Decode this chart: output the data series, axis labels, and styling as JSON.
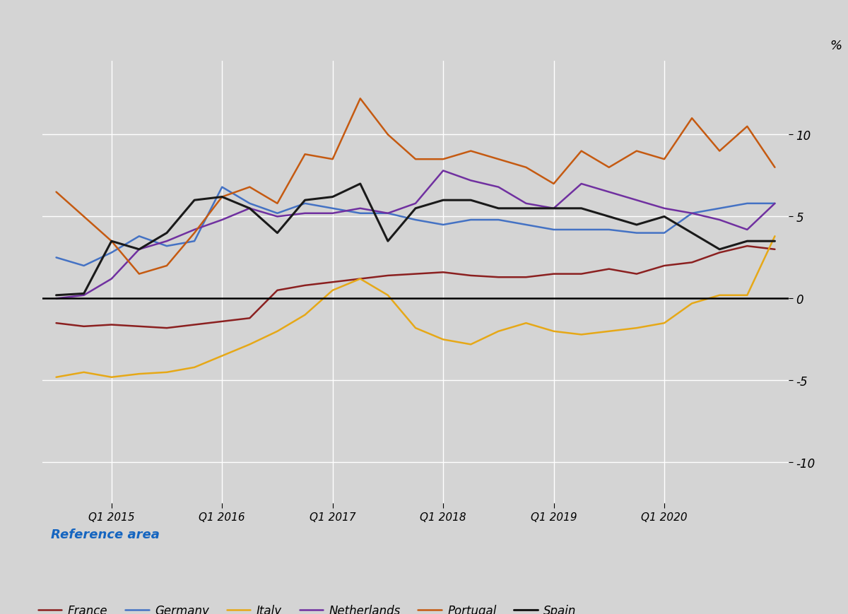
{
  "background_color": "#d4d4d4",
  "zero_line_color": "#000000",
  "grid_color": "#ffffff",
  "ylabel": "%",
  "x_tick_labels": [
    "Q1 2015",
    "Q1 2016",
    "Q1 2017",
    "Q1 2018",
    "Q1 2019",
    "Q1 2020"
  ],
  "yticks": [
    -10,
    -5,
    0,
    5,
    10
  ],
  "ylim": [
    -12.5,
    14.5
  ],
  "legend_title": "Reference area",
  "legend_title_color": "#1565c0",
  "series": {
    "France": {
      "color": "#8b2020",
      "linewidth": 1.8,
      "data": [
        -1.5,
        -1.7,
        -1.6,
        -1.7,
        -1.8,
        -1.6,
        -1.4,
        -1.2,
        0.5,
        0.8,
        1.0,
        1.2,
        1.4,
        1.5,
        1.6,
        1.4,
        1.3,
        1.3,
        1.5,
        1.5,
        1.8,
        1.5,
        2.0,
        2.2,
        2.8,
        3.2,
        3.0
      ]
    },
    "Germany": {
      "color": "#4472c4",
      "linewidth": 1.8,
      "data": [
        2.5,
        2.0,
        2.8,
        3.8,
        3.2,
        3.5,
        6.8,
        5.8,
        5.2,
        5.8,
        5.5,
        5.2,
        5.2,
        4.8,
        4.5,
        4.8,
        4.8,
        4.5,
        4.2,
        4.2,
        4.2,
        4.0,
        4.0,
        5.2,
        5.5,
        5.8,
        5.8
      ]
    },
    "Italy": {
      "color": "#e6a817",
      "linewidth": 1.8,
      "data": [
        -4.8,
        -4.5,
        -4.8,
        -4.6,
        -4.5,
        -4.2,
        -3.5,
        -2.8,
        -2.0,
        -1.0,
        0.5,
        1.2,
        0.2,
        -1.8,
        -2.5,
        -2.8,
        -2.0,
        -1.5,
        -2.0,
        -2.2,
        -2.0,
        -1.8,
        -1.5,
        -0.3,
        0.2,
        0.2,
        3.8
      ]
    },
    "Netherlands": {
      "color": "#7030a0",
      "linewidth": 1.8,
      "data": [
        0.0,
        0.2,
        1.2,
        3.0,
        3.5,
        4.2,
        4.8,
        5.5,
        5.0,
        5.2,
        5.2,
        5.5,
        5.2,
        5.8,
        7.8,
        7.2,
        6.8,
        5.8,
        5.5,
        7.0,
        6.5,
        6.0,
        5.5,
        5.2,
        4.8,
        4.2,
        5.8
      ]
    },
    "Portugal": {
      "color": "#c55a11",
      "linewidth": 1.8,
      "data": [
        6.5,
        5.0,
        3.5,
        1.5,
        2.0,
        4.0,
        6.2,
        6.8,
        5.8,
        8.8,
        8.5,
        12.2,
        10.0,
        8.5,
        8.5,
        9.0,
        8.5,
        8.0,
        7.0,
        9.0,
        8.0,
        9.0,
        8.5,
        11.0,
        9.0,
        10.5,
        8.0
      ]
    },
    "Spain": {
      "color": "#1a1a1a",
      "linewidth": 2.2,
      "data": [
        0.2,
        0.3,
        3.5,
        3.0,
        4.0,
        6.0,
        6.2,
        5.5,
        4.0,
        6.0,
        6.2,
        7.0,
        3.5,
        5.5,
        6.0,
        6.0,
        5.5,
        5.5,
        5.5,
        5.5,
        5.0,
        4.5,
        5.0,
        4.0,
        3.0,
        3.5,
        3.5
      ]
    }
  }
}
